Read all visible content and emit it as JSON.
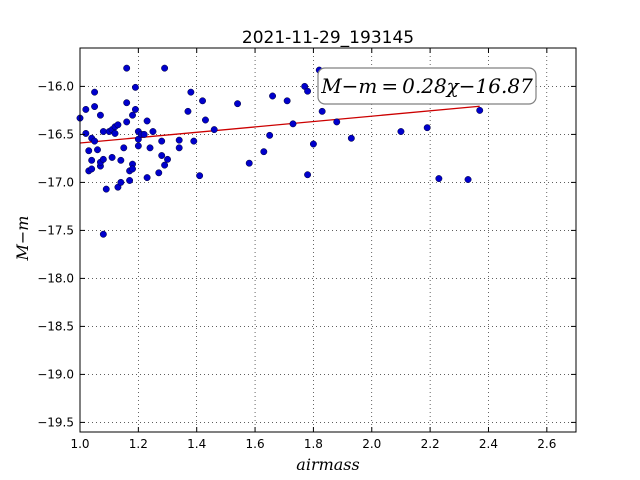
{
  "chart_data": {
    "type": "scatter",
    "title": "2021-11-29_193145",
    "xlabel": "airmass",
    "ylabel": "M−m",
    "xlim": [
      1.0,
      2.7
    ],
    "ylim": [
      -19.6,
      -15.6
    ],
    "x_ticks": [
      1.0,
      1.2,
      1.4,
      1.6,
      1.8,
      2.0,
      2.2,
      2.4,
      2.6
    ],
    "x_tick_labels": [
      "1.0",
      "1.2",
      "1.4",
      "1.6",
      "1.8",
      "2.0",
      "2.2",
      "2.4",
      "2.6"
    ],
    "y_ticks": [
      -16.0,
      -16.5,
      -17.0,
      -17.5,
      -18.0,
      -18.5,
      -19.0,
      -19.5
    ],
    "y_tick_labels": [
      "−16.0",
      "−16.5",
      "−17.0",
      "−17.5",
      "−18.0",
      "−18.5",
      "−19.0",
      "−19.5"
    ],
    "grid": true,
    "point_color": "#0000cc",
    "fit_color": "#cc0000",
    "points": [
      [
        1.0,
        -16.33
      ],
      [
        1.02,
        -16.24
      ],
      [
        1.02,
        -16.49
      ],
      [
        1.03,
        -16.67
      ],
      [
        1.03,
        -16.88
      ],
      [
        1.04,
        -16.54
      ],
      [
        1.04,
        -16.77
      ],
      [
        1.04,
        -16.86
      ],
      [
        1.05,
        -16.06
      ],
      [
        1.05,
        -16.21
      ],
      [
        1.05,
        -16.57
      ],
      [
        1.06,
        -16.66
      ],
      [
        1.07,
        -16.83
      ],
      [
        1.07,
        -16.79
      ],
      [
        1.08,
        -16.76
      ],
      [
        1.07,
        -16.3
      ],
      [
        1.08,
        -16.47
      ],
      [
        1.08,
        -17.54
      ],
      [
        1.09,
        -17.07
      ],
      [
        1.1,
        -16.47
      ],
      [
        1.11,
        -16.45
      ],
      [
        1.11,
        -16.74
      ],
      [
        1.12,
        -16.49
      ],
      [
        1.12,
        -16.42
      ],
      [
        1.13,
        -16.4
      ],
      [
        1.13,
        -17.05
      ],
      [
        1.14,
        -16.77
      ],
      [
        1.14,
        -17.0
      ],
      [
        1.15,
        -16.64
      ],
      [
        1.16,
        -15.81
      ],
      [
        1.16,
        -16.17
      ],
      [
        1.16,
        -16.37
      ],
      [
        1.17,
        -16.98
      ],
      [
        1.17,
        -16.88
      ],
      [
        1.18,
        -16.3
      ],
      [
        1.18,
        -16.81
      ],
      [
        1.18,
        -16.86
      ],
      [
        1.19,
        -16.01
      ],
      [
        1.19,
        -16.24
      ],
      [
        1.2,
        -16.47
      ],
      [
        1.2,
        -16.55
      ],
      [
        1.2,
        -16.62
      ],
      [
        1.21,
        -16.5
      ],
      [
        1.22,
        -16.5
      ],
      [
        1.23,
        -16.36
      ],
      [
        1.23,
        -16.95
      ],
      [
        1.24,
        -16.64
      ],
      [
        1.25,
        -16.47
      ],
      [
        1.27,
        -16.9
      ],
      [
        1.28,
        -16.57
      ],
      [
        1.29,
        -15.81
      ],
      [
        1.28,
        -16.72
      ],
      [
        1.29,
        -16.82
      ],
      [
        1.3,
        -16.76
      ],
      [
        1.34,
        -16.56
      ],
      [
        1.34,
        -16.64
      ],
      [
        1.37,
        -16.26
      ],
      [
        1.38,
        -16.06
      ],
      [
        1.39,
        -16.57
      ],
      [
        1.41,
        -16.93
      ],
      [
        1.42,
        -16.15
      ],
      [
        1.43,
        -16.35
      ],
      [
        1.46,
        -16.45
      ],
      [
        1.54,
        -16.18
      ],
      [
        1.58,
        -16.8
      ],
      [
        1.63,
        -16.68
      ],
      [
        1.65,
        -16.51
      ],
      [
        1.66,
        -16.1
      ],
      [
        1.71,
        -16.15
      ],
      [
        1.73,
        -16.39
      ],
      [
        1.77,
        -16.0
      ],
      [
        1.78,
        -16.05
      ],
      [
        1.78,
        -16.92
      ],
      [
        1.8,
        -16.6
      ],
      [
        1.82,
        -15.83
      ],
      [
        1.83,
        -16.26
      ],
      [
        1.88,
        -16.37
      ],
      [
        1.93,
        -16.54
      ],
      [
        2.1,
        -16.47
      ],
      [
        2.19,
        -16.43
      ],
      [
        2.23,
        -16.96
      ],
      [
        2.33,
        -16.97
      ],
      [
        2.37,
        -16.25
      ]
    ],
    "fit": {
      "slope": 0.28,
      "intercept": -16.87,
      "x_range": [
        1.0,
        2.37
      ]
    },
    "annotation": "M−m = 0.28χ−16.87"
  }
}
